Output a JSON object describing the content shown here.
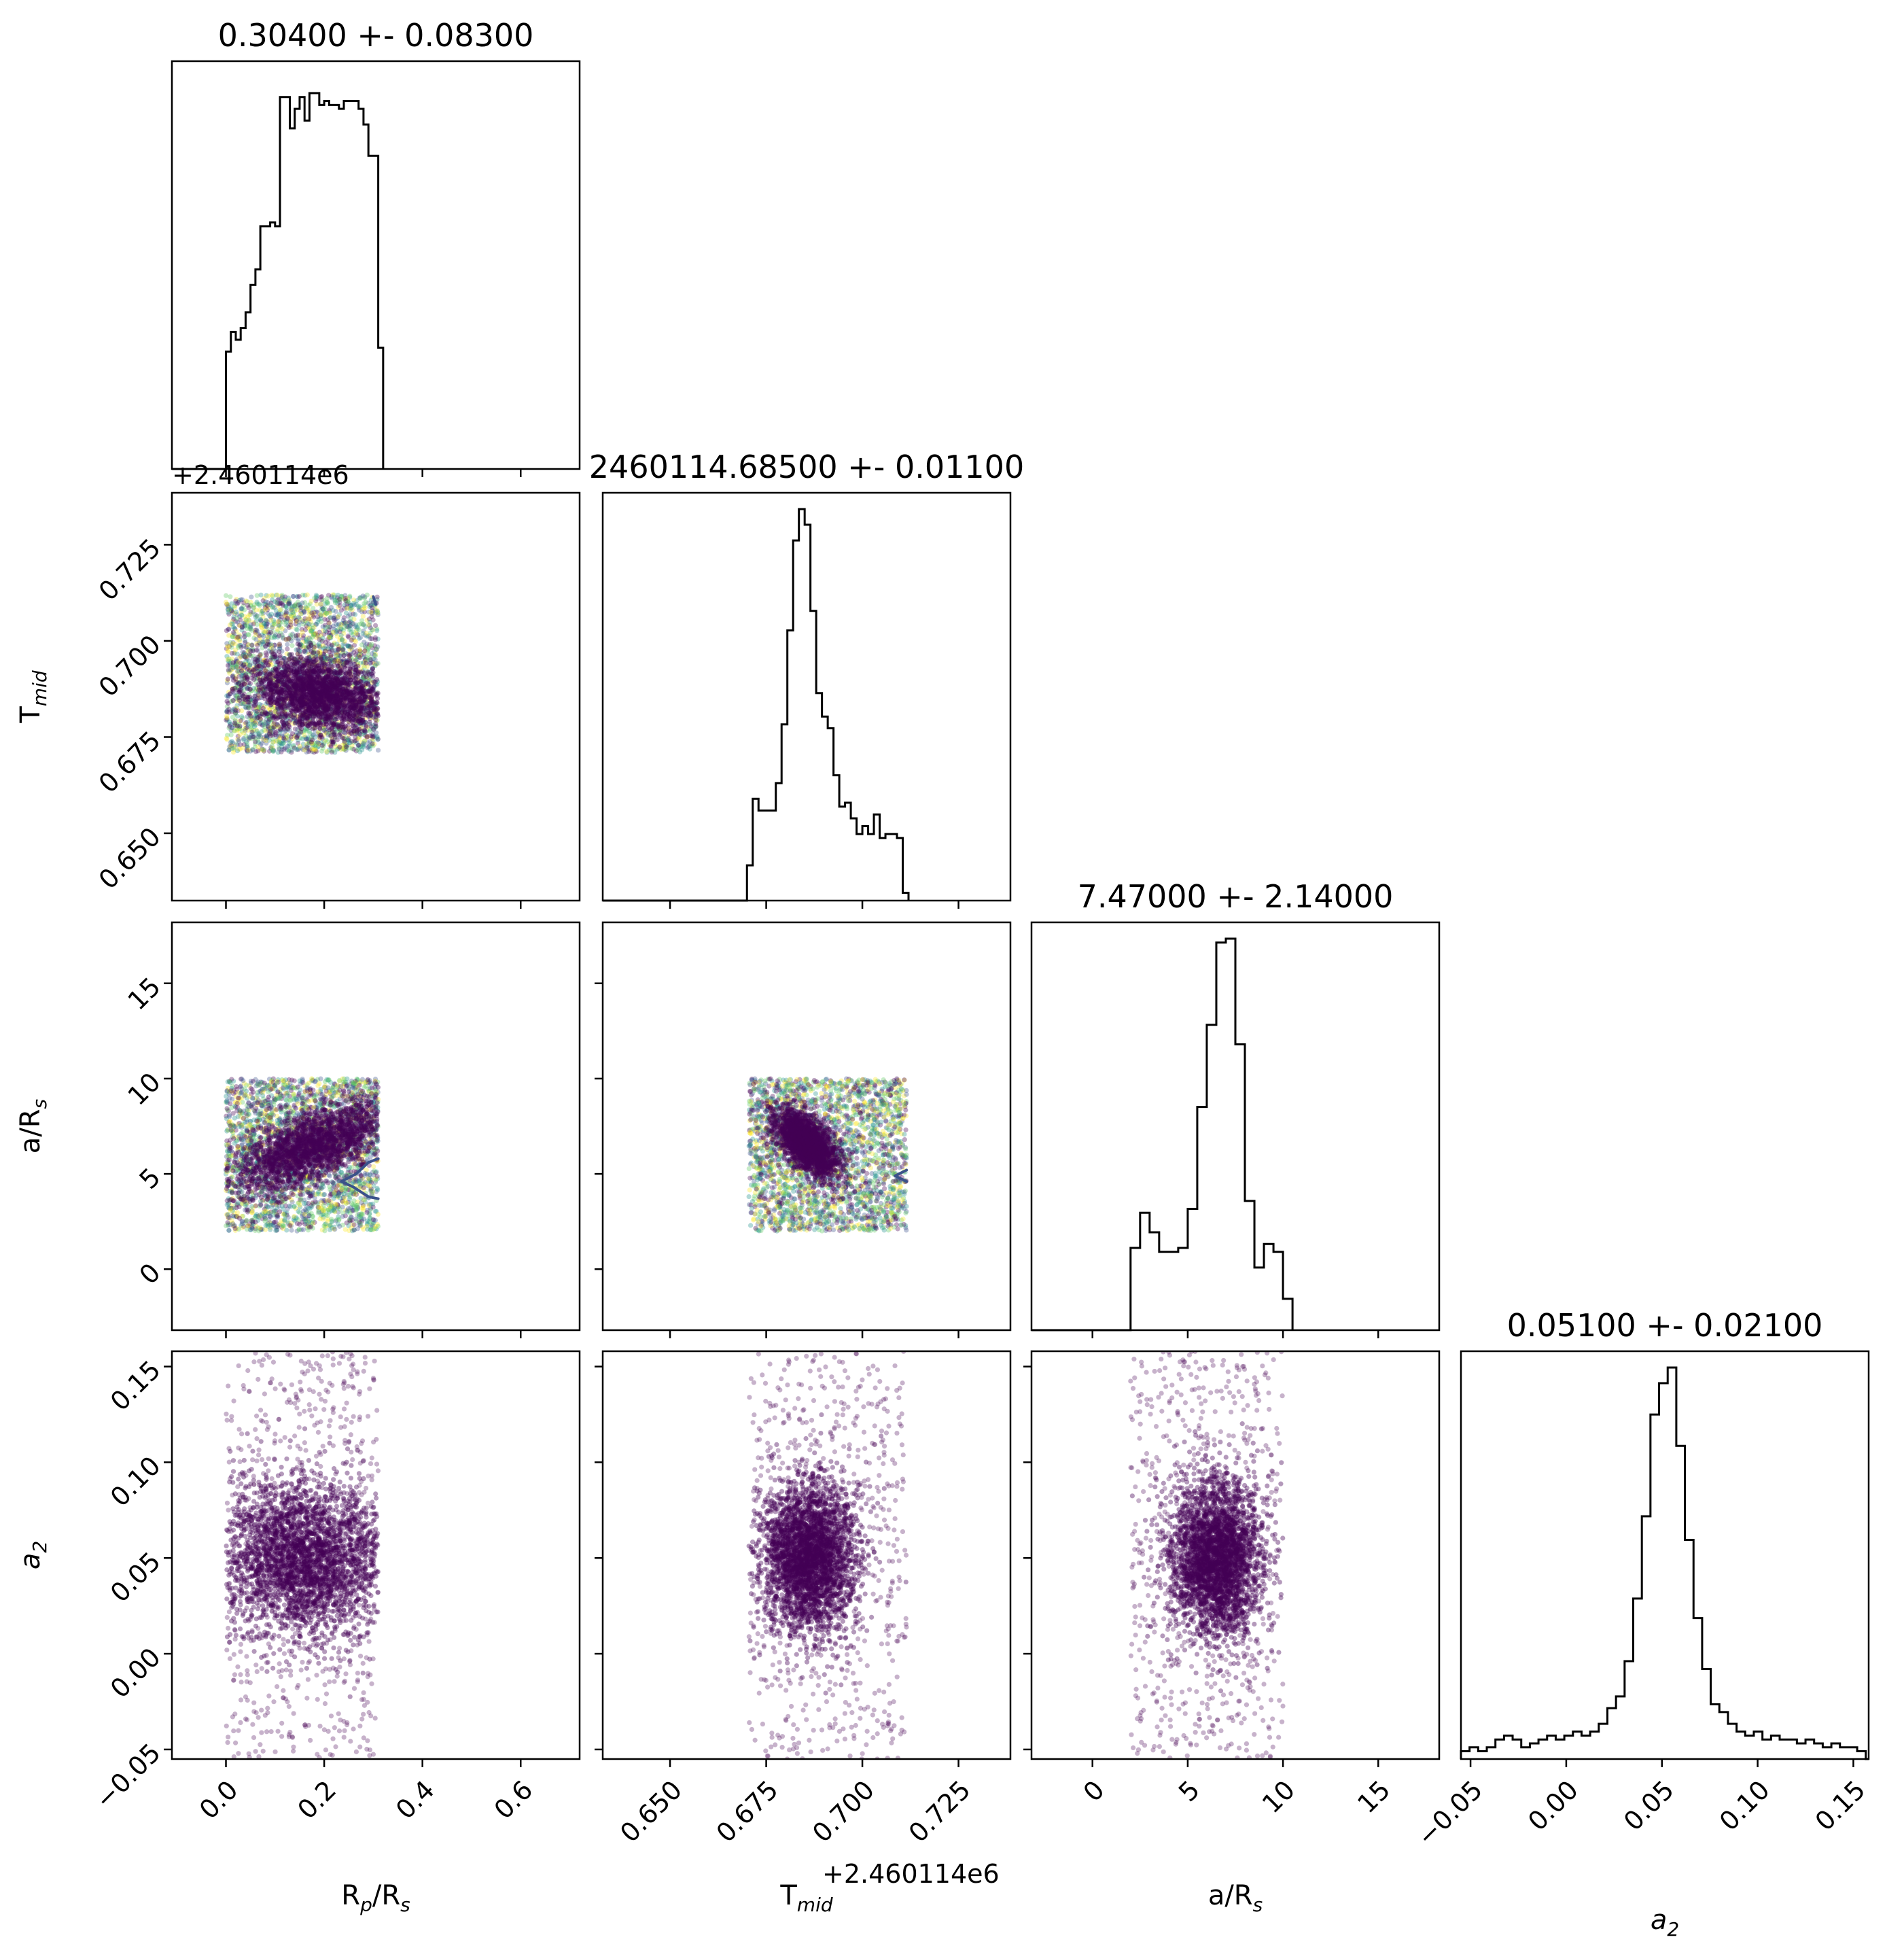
{
  "figure": {
    "type": "corner_plot",
    "offset_label": "+2.460114e6"
  },
  "chart_data": {
    "type": "corner",
    "parameters": [
      {
        "key": "Rp_Rs",
        "label_main": "R",
        "label_sub1": "p",
        "label_mid": "/R",
        "label_sub2": "s",
        "title": "0.30400 +- 0.08300",
        "range": [
          -0.11,
          0.72
        ],
        "ticks": [
          0.0,
          0.2,
          0.4,
          0.6
        ],
        "tick_labels": [
          "0.0",
          "0.2",
          "0.4",
          "0.6"
        ]
      },
      {
        "key": "T_mid",
        "label_main": "T",
        "label_sub1": "mid",
        "label_mid": "",
        "label_sub2": "",
        "title": "2460114.68500 +- 0.01100",
        "range": [
          0.6325,
          0.7385
        ],
        "ticks": [
          0.65,
          0.675,
          0.7,
          0.725
        ],
        "tick_labels": [
          "0.650",
          "0.675",
          "0.700",
          "0.725"
        ],
        "offset": "+2.460114e6"
      },
      {
        "key": "a_Rs",
        "label_main": "a/R",
        "label_sub1": "s",
        "label_mid": "",
        "label_sub2": "",
        "title": "7.47000 +- 2.14000",
        "range": [
          -3.2,
          18.2
        ],
        "ticks": [
          0,
          5,
          10,
          15
        ],
        "tick_labels": [
          "0",
          "5",
          "10",
          "15"
        ]
      },
      {
        "key": "a2",
        "label_main": "a",
        "label_sub1": "2",
        "label_mid": "",
        "label_sub2": "",
        "italic": true,
        "title": "0.05100 +- 0.02100",
        "range": [
          -0.055,
          0.158
        ],
        "ticks": [
          -0.05,
          0.0,
          0.05,
          0.1,
          0.15
        ],
        "tick_labels": [
          "−0.05",
          "0.00",
          "0.05",
          "0.10",
          "0.15"
        ]
      }
    ],
    "histograms": [
      {
        "param": "Rp_Rs",
        "bin_edges": [
          0.0,
          0.01,
          0.02,
          0.03,
          0.04,
          0.05,
          0.06,
          0.07,
          0.08,
          0.09,
          0.1,
          0.11,
          0.12,
          0.13,
          0.14,
          0.15,
          0.16,
          0.17,
          0.18,
          0.19,
          0.2,
          0.21,
          0.22,
          0.23,
          0.24,
          0.25,
          0.26,
          0.27,
          0.28,
          0.29,
          0.3,
          0.31,
          0.32
        ],
        "counts": [
          0.3,
          0.35,
          0.33,
          0.36,
          0.4,
          0.47,
          0.51,
          0.62,
          0.62,
          0.63,
          0.62,
          0.95,
          0.95,
          0.87,
          0.92,
          0.95,
          0.89,
          0.96,
          0.96,
          0.93,
          0.94,
          0.93,
          0.93,
          0.92,
          0.94,
          0.94,
          0.94,
          0.92,
          0.88,
          0.8,
          0.8,
          0.31,
          0.0
        ]
      },
      {
        "param": "T_mid",
        "bin_edges": [
          0.67,
          0.6715,
          0.673,
          0.6745,
          0.676,
          0.6775,
          0.679,
          0.6805,
          0.682,
          0.6835,
          0.685,
          0.6865,
          0.688,
          0.6895,
          0.691,
          0.6925,
          0.694,
          0.6955,
          0.697,
          0.6985,
          0.7,
          0.7015,
          0.703,
          0.7045,
          0.706,
          0.7075,
          0.709,
          0.7105,
          0.712
        ],
        "counts": [
          0.09,
          0.26,
          0.23,
          0.23,
          0.23,
          0.3,
          0.45,
          0.69,
          0.92,
          1.0,
          0.96,
          0.74,
          0.53,
          0.47,
          0.44,
          0.32,
          0.24,
          0.25,
          0.21,
          0.17,
          0.19,
          0.17,
          0.22,
          0.16,
          0.17,
          0.17,
          0.16,
          0.02,
          0.0
        ]
      },
      {
        "param": "a_Rs",
        "bin_edges": [
          2.0,
          2.5,
          3.0,
          3.5,
          4.0,
          4.5,
          5.0,
          5.5,
          6.0,
          6.5,
          7.0,
          7.5,
          8.0,
          8.5,
          9.0,
          9.5,
          10.0,
          10.5
        ],
        "counts": [
          0.21,
          0.3,
          0.25,
          0.2,
          0.2,
          0.21,
          0.31,
          0.57,
          0.78,
          0.99,
          1.0,
          0.73,
          0.33,
          0.16,
          0.22,
          0.2,
          0.08,
          0.0
        ]
      },
      {
        "param": "a2",
        "bin_edges": [
          -0.055,
          -0.0505,
          -0.046,
          -0.0415,
          -0.037,
          -0.0325,
          -0.028,
          -0.0235,
          -0.019,
          -0.0145,
          -0.01,
          -0.0055,
          -0.001,
          0.0035,
          0.008,
          0.0125,
          0.017,
          0.0215,
          0.026,
          0.0305,
          0.035,
          0.0395,
          0.044,
          0.0485,
          0.053,
          0.0575,
          0.062,
          0.0665,
          0.071,
          0.0755,
          0.08,
          0.0845,
          0.089,
          0.0935,
          0.098,
          0.1025,
          0.107,
          0.1115,
          0.116,
          0.1205,
          0.125,
          0.1295,
          0.134,
          0.1385,
          0.143,
          0.1475,
          0.152,
          0.1565
        ],
        "counts": [
          0.02,
          0.03,
          0.02,
          0.03,
          0.05,
          0.06,
          0.05,
          0.03,
          0.04,
          0.05,
          0.06,
          0.05,
          0.06,
          0.07,
          0.06,
          0.07,
          0.09,
          0.13,
          0.16,
          0.25,
          0.41,
          0.62,
          0.88,
          0.96,
          1.0,
          0.8,
          0.56,
          0.36,
          0.23,
          0.14,
          0.12,
          0.09,
          0.07,
          0.06,
          0.07,
          0.05,
          0.06,
          0.05,
          0.05,
          0.04,
          0.05,
          0.04,
          0.03,
          0.04,
          0.03,
          0.03,
          0.02
        ]
      }
    ],
    "scatter_pairs": [
      {
        "x": "Rp_Rs",
        "y": "T_mid",
        "x_range": [
          0.0,
          0.31
        ],
        "y_range": [
          0.671,
          0.712
        ],
        "core": {
          "x_mean": 0.19,
          "y_mean": 0.686,
          "x_sd": 0.07,
          "y_sd": 0.0045,
          "slope": -0.018
        },
        "colored": true,
        "contours": [
          {
            "points": [
              [
                0.3,
                0.7115
              ],
              [
                0.305,
                0.7095
              ]
            ]
          }
        ]
      },
      {
        "x": "Rp_Rs",
        "y": "a_Rs",
        "x_range": [
          0.0,
          0.31
        ],
        "y_range": [
          2.0,
          10.0
        ],
        "core": {
          "x_mean": 0.18,
          "y_mean": 6.5,
          "x_sd": 0.08,
          "y_sd": 0.9,
          "slope": 10.0
        },
        "colored": true,
        "contours": [
          {
            "points": [
              [
                0.31,
                5.8
              ],
              [
                0.29,
                5.6
              ],
              [
                0.265,
                5.0
              ],
              [
                0.235,
                4.6
              ],
              [
                0.26,
                4.3
              ],
              [
                0.29,
                3.8
              ],
              [
                0.31,
                3.7
              ]
            ]
          }
        ]
      },
      {
        "x": "T_mid",
        "y": "a_Rs",
        "x_range": [
          0.6705,
          0.7115
        ],
        "y_range": [
          2.0,
          10.0
        ],
        "core": {
          "x_mean": 0.6855,
          "y_mean": 6.6,
          "x_sd": 0.004,
          "y_sd": 0.7,
          "slope": -120.0
        },
        "colored": true,
        "contours": [
          {
            "points": [
              [
                0.7115,
                5.2
              ],
              [
                0.7085,
                4.9
              ],
              [
                0.7115,
                4.6
              ]
            ]
          }
        ]
      },
      {
        "x": "Rp_Rs",
        "y": "a2",
        "x_range": [
          0.0,
          0.31
        ],
        "y_range": [
          -0.055,
          0.158
        ],
        "core": {
          "x_mean": 0.16,
          "y_mean": 0.05,
          "x_sd": 0.09,
          "y_sd": 0.02,
          "slope": 0
        },
        "colored": false,
        "contours": []
      },
      {
        "x": "T_mid",
        "y": "a2",
        "x_range": [
          0.6705,
          0.7115
        ],
        "y_range": [
          -0.055,
          0.158
        ],
        "core": {
          "x_mean": 0.686,
          "y_mean": 0.05,
          "x_sd": 0.006,
          "y_sd": 0.02,
          "slope": 0
        },
        "colored": false,
        "contours": []
      },
      {
        "x": "a_Rs",
        "y": "a2",
        "x_range": [
          2.0,
          10.0
        ],
        "y_range": [
          -0.055,
          0.158
        ],
        "core": {
          "x_mean": 6.5,
          "y_mean": 0.05,
          "x_sd": 1.2,
          "y_sd": 0.02,
          "slope": 0
        },
        "colored": false,
        "contours": []
      }
    ],
    "colors": {
      "hist_line": "#000000",
      "scatter_core": "#440154",
      "scatter_mix": [
        "#440154",
        "#3b528b",
        "#21918c",
        "#5ec962",
        "#fde725"
      ],
      "contour": "#3b528b"
    }
  }
}
